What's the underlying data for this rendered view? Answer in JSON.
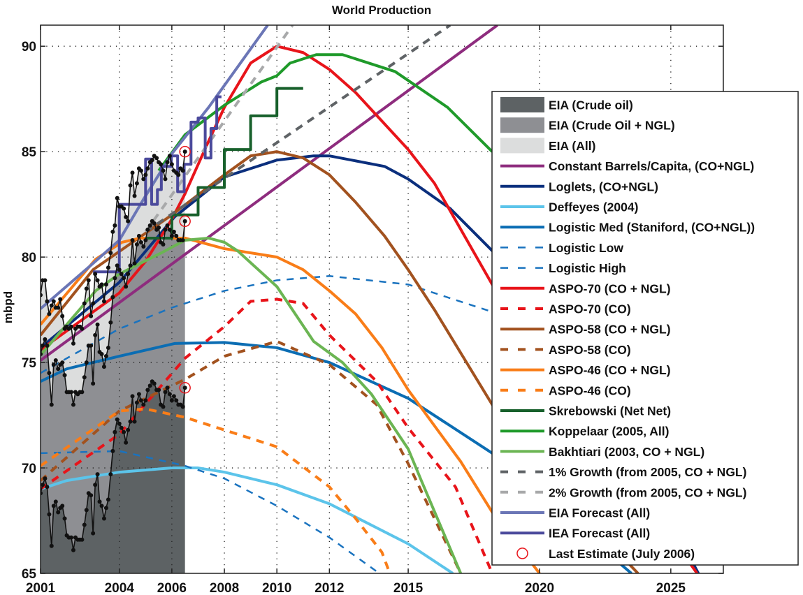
{
  "chart_data": {
    "type": "line",
    "title": "World Production",
    "xlabel": "",
    "ylabel": "mbpd",
    "xlim": [
      2001,
      2027
    ],
    "ylim": [
      65,
      91
    ],
    "xticks": [
      2001,
      2004,
      2006,
      2008,
      2010,
      2012,
      2015,
      2020,
      2025
    ],
    "yticks": [
      65,
      70,
      75,
      80,
      85,
      90
    ],
    "grid": true,
    "legend_position": "right",
    "eia_months": [
      2001.0,
      2001.08,
      2001.17,
      2001.25,
      2001.33,
      2001.42,
      2001.5,
      2001.58,
      2001.67,
      2001.75,
      2001.83,
      2001.92,
      2002.0,
      2002.08,
      2002.17,
      2002.25,
      2002.33,
      2002.42,
      2002.5,
      2002.58,
      2002.67,
      2002.75,
      2002.83,
      2002.92,
      2003.0,
      2003.08,
      2003.17,
      2003.25,
      2003.33,
      2003.42,
      2003.5,
      2003.58,
      2003.67,
      2003.75,
      2003.83,
      2003.92,
      2004.0,
      2004.08,
      2004.17,
      2004.25,
      2004.33,
      2004.42,
      2004.5,
      2004.58,
      2004.67,
      2004.75,
      2004.83,
      2004.92,
      2005.0,
      2005.08,
      2005.17,
      2005.25,
      2005.33,
      2005.42,
      2005.5,
      2005.58,
      2005.67,
      2005.75,
      2005.83,
      2005.92,
      2006.0,
      2006.08,
      2006.17,
      2006.25,
      2006.33,
      2006.42,
      2006.5
    ],
    "areas": [
      {
        "name": "EIA (Crude oil)",
        "color": "#5d6264",
        "y": [
          68.8,
          69.2,
          69.5,
          69.1,
          67.8,
          66.3,
          68.2,
          68.4,
          67.9,
          68.1,
          68.2,
          67.6,
          66.8,
          66.7,
          66.7,
          66.1,
          66.7,
          66.6,
          66.6,
          66.6,
          67.3,
          68.0,
          68.8,
          68.7,
          66.9,
          69.2,
          69.7,
          68.4,
          68.2,
          67.6,
          68.1,
          68.5,
          69.7,
          70.8,
          71.7,
          72.3,
          72.1,
          71.9,
          71.7,
          71.2,
          71.8,
          72.2,
          73.4,
          72.2,
          73.1,
          73.5,
          73.2,
          73.0,
          73.2,
          73.7,
          73.9,
          74.1,
          74.0,
          73.7,
          73.7,
          73.0,
          72.9,
          73.6,
          73.8,
          73.5,
          73.2,
          73.4,
          73.2,
          73.0,
          73.0,
          72.9,
          73.8
        ]
      },
      {
        "name": "EIA (Crude Oil + NGL)",
        "color": "#8e8f93",
        "y": [
          75.4,
          75.8,
          76.1,
          75.8,
          74.5,
          73.0,
          74.9,
          75.1,
          74.7,
          74.9,
          75.0,
          74.4,
          73.6,
          73.6,
          73.6,
          73.0,
          73.6,
          73.5,
          73.6,
          73.6,
          74.3,
          75.0,
          75.8,
          75.8,
          74.0,
          76.3,
          76.8,
          75.5,
          75.4,
          74.8,
          75.3,
          75.7,
          76.9,
          78.1,
          79.0,
          79.6,
          79.4,
          79.2,
          79.0,
          78.6,
          79.2,
          79.6,
          80.8,
          79.7,
          80.6,
          81.0,
          80.7,
          80.5,
          80.8,
          81.3,
          81.5,
          81.7,
          81.6,
          81.3,
          81.4,
          80.7,
          80.6,
          81.3,
          81.5,
          81.3,
          81.0,
          81.2,
          81.0,
          80.8,
          80.8,
          80.8,
          81.7
        ]
      },
      {
        "name": "EIA (All)",
        "color": "#dcdddd",
        "y": [
          78.2,
          78.9,
          78.9,
          77.9,
          77.3,
          77.7,
          77.9,
          77.6,
          77.6,
          78.0,
          77.2,
          76.6,
          76.7,
          76.6,
          76.7,
          75.9,
          76.6,
          76.7,
          76.7,
          76.6,
          77.8,
          78.5,
          78.9,
          77.2,
          77.8,
          79.2,
          78.9,
          78.6,
          78.7,
          77.9,
          78.7,
          79.5,
          80.2,
          81.2,
          81.5,
          82.8,
          82.4,
          82.4,
          82.3,
          81.9,
          81.7,
          83.4,
          84.0,
          82.9,
          83.5,
          84.2,
          84.1,
          83.7,
          83.9,
          84.2,
          84.5,
          84.6,
          84.8,
          84.7,
          84.5,
          84.4,
          84.1,
          83.7,
          84.5,
          84.8,
          84.4,
          84.1,
          84.0,
          83.9,
          84.2,
          84.1,
          85.0
        ]
      }
    ],
    "series": [
      {
        "name": "Constant Barrels/Capita, (CO+NGL)",
        "color": "#8e2c7e",
        "style": "solid",
        "x": [
          2001,
          2018.4
        ],
        "y": [
          75.1,
          91.0
        ]
      },
      {
        "name": "Loglets, (CO+NGL)",
        "color": "#0b2f7d",
        "style": "solid",
        "x": [
          2001,
          2004,
          2006.1,
          2008,
          2010,
          2011.4,
          2012,
          2014.1,
          2015,
          2016.6,
          2018.2,
          2020,
          2022,
          2024,
          2026.05
        ],
        "y": [
          75.7,
          78.8,
          81.9,
          83.8,
          84.6,
          84.8,
          84.8,
          84.3,
          83.7,
          82.3,
          80.3,
          77.6,
          74.0,
          69.8,
          65.0
        ]
      },
      {
        "name": "Deffeyes (2004)",
        "color": "#5cc4ea",
        "style": "solid",
        "x": [
          2001,
          2002,
          2004,
          2006,
          2007,
          2008,
          2010,
          2012,
          2015,
          2016.7
        ],
        "y": [
          69.0,
          69.4,
          69.8,
          70.0,
          70.0,
          69.8,
          69.2,
          68.3,
          66.4,
          65.0
        ]
      },
      {
        "name": "Logistic Med (Staniford, (CO+NGL))",
        "color": "#0b6db3",
        "style": "solid",
        "x": [
          2001,
          2002,
          2004,
          2006.1,
          2008,
          2010,
          2012,
          2015,
          2018.2,
          2020,
          2022,
          2023.5
        ],
        "y": [
          74.1,
          74.7,
          75.3,
          75.9,
          75.95,
          75.7,
          75.0,
          73.3,
          70.7,
          68.9,
          66.6,
          65.0
        ]
      },
      {
        "name": "Logistic Low",
        "color": "#1a73bf",
        "style": "thin-dashed",
        "x": [
          2001,
          2004,
          2006.5,
          2008,
          2010,
          2012,
          2013.9
        ],
        "y": [
          70.7,
          70.8,
          70.1,
          69.5,
          68.2,
          66.7,
          65.0
        ]
      },
      {
        "name": "Logistic High",
        "color": "#1a73bf",
        "style": "thin-dashed",
        "x": [
          2001,
          2004,
          2006,
          2008,
          2010,
          2012,
          2015,
          2018.2
        ],
        "y": [
          74.5,
          76.6,
          77.6,
          78.4,
          78.9,
          79.1,
          78.7,
          77.4
        ]
      },
      {
        "name": "ASPO-70 (CO + NGL)",
        "color": "#e8141a",
        "style": "solid",
        "x": [
          2001,
          2004,
          2005,
          2006,
          2006.5,
          2007.4,
          2008,
          2009,
          2010,
          2011,
          2012,
          2013,
          2015,
          2016,
          2018.2,
          2020,
          2022,
          2024,
          2026
        ],
        "y": [
          75.6,
          78.3,
          79.8,
          81.8,
          83.0,
          85.5,
          87.1,
          89.2,
          90.0,
          89.7,
          88.9,
          87.8,
          85.1,
          83.5,
          78.7,
          75.5,
          72.0,
          68.5,
          65.0
        ]
      },
      {
        "name": "ASPO-70 (CO)",
        "color": "#e8141a",
        "style": "dashed",
        "x": [
          2001,
          2004,
          2006.5,
          2008,
          2009,
          2010,
          2011,
          2012,
          2013.8,
          2015,
          2016.8,
          2018.2
        ],
        "y": [
          69.0,
          71.6,
          75.2,
          76.7,
          77.9,
          78.0,
          77.8,
          76.3,
          74.1,
          71.9,
          69.1,
          65.0
        ]
      },
      {
        "name": "ASPO-58 (CO + NGL)",
        "color": "#a2521f",
        "style": "solid",
        "x": [
          2001,
          2003,
          2006,
          2008,
          2009,
          2010,
          2011,
          2012,
          2013,
          2014.1,
          2015,
          2016,
          2018.2,
          2021,
          2023.75
        ],
        "y": [
          76.3,
          79.4,
          82.0,
          83.9,
          84.8,
          85.0,
          84.7,
          83.9,
          82.6,
          81.0,
          79.4,
          77.5,
          73.0,
          68.6,
          65.0
        ]
      },
      {
        "name": "ASPO-58 (CO)",
        "color": "#a2521f",
        "style": "dashed",
        "x": [
          2001,
          2004,
          2006.5,
          2008,
          2010,
          2012,
          2013.8,
          2015,
          2017.0
        ],
        "y": [
          69.4,
          72.7,
          74.2,
          75.3,
          76.0,
          74.9,
          73.0,
          70.2,
          65.0
        ]
      },
      {
        "name": "ASPO-46 (CO + NGL)",
        "color": "#f97d18",
        "style": "solid",
        "x": [
          2001,
          2003.1,
          2004.1,
          2004.8,
          2006.5,
          2008,
          2010,
          2011,
          2012,
          2013,
          2014,
          2015,
          2017,
          2018.2,
          2020
        ],
        "y": [
          76.8,
          79.9,
          80.7,
          80.9,
          80.9,
          80.4,
          80.0,
          79.4,
          78.4,
          77.3,
          75.7,
          73.7,
          70.3,
          67.9,
          65.0
        ]
      },
      {
        "name": "ASPO-46 (CO)",
        "color": "#f97d18",
        "style": "dashed",
        "x": [
          2001,
          2004,
          2005,
          2006.5,
          2008,
          2010,
          2012,
          2013,
          2014,
          2014.3
        ],
        "y": [
          70.1,
          72.7,
          72.8,
          72.4,
          71.8,
          71.0,
          69.1,
          67.6,
          66.0,
          65.0
        ]
      },
      {
        "name": "Skrebowski (Net Net)",
        "color": "#17602b",
        "style": "step",
        "x": [
          2005,
          2006,
          2007,
          2008,
          2009,
          2010,
          2011
        ],
        "y": [
          80.9,
          82.0,
          83.3,
          85.1,
          86.7,
          88.0,
          88.0
        ]
      },
      {
        "name": "Koppelaar (2005, All)",
        "color": "#1f9a2a",
        "style": "solid",
        "x": [
          2005.5,
          2006.5,
          2008,
          2009.4,
          2010,
          2010.5,
          2011.5,
          2012.5,
          2014.5,
          2016.5,
          2018.2
        ],
        "y": [
          84.1,
          85.8,
          87.2,
          88.3,
          88.6,
          89.2,
          89.6,
          89.6,
          88.8,
          87.1,
          85.0
        ]
      },
      {
        "name": "Bakhtiari (2003, CO + NGL)",
        "color": "#6bb553",
        "style": "solid",
        "x": [
          2001,
          2003.1,
          2004,
          2005.6,
          2006.5,
          2007.4,
          2008,
          2008.5,
          2010,
          2011.4,
          2012.5,
          2013.6,
          2015,
          2015.5,
          2017
        ],
        "y": [
          75.35,
          78.4,
          79.2,
          80.2,
          80.8,
          80.9,
          80.7,
          80.3,
          78.6,
          76.0,
          75.0,
          73.5,
          70.9,
          69.4,
          65.0
        ]
      },
      {
        "name": "1% Growth (from 2005, CO + NGL)",
        "color": "#5f6366",
        "style": "dashed",
        "x": [
          2005,
          2016.6
        ],
        "y": [
          81.2,
          91.0
        ]
      },
      {
        "name": "2% Growth (from 2005, CO + NGL)",
        "color": "#a8a9aa",
        "style": "dashed",
        "x": [
          2005,
          2010.6
        ],
        "y": [
          81.2,
          91.0
        ]
      },
      {
        "name": "EIA Forecast (All)",
        "color": "#6b76b6",
        "style": "solid",
        "x": [
          2001,
          2003,
          2004,
          2004.9,
          2006,
          2007.4,
          2009.65
        ],
        "y": [
          77.55,
          79.7,
          80.8,
          82.7,
          84.9,
          87.1,
          91.0
        ]
      },
      {
        "name": "IEA Forecast (All)",
        "color": "#4b4a9c",
        "style": "path",
        "x": [
          2003.0,
          2004.0,
          2004.0,
          2005.0,
          2005.0,
          2005.23,
          2005.23,
          2005.45,
          2005.45,
          2005.6,
          2005.6,
          2005.98,
          2005.98,
          2006.22,
          2006.22,
          2006.47,
          2006.47,
          2006.73,
          2006.73,
          2007.0,
          2007.0,
          2007.27,
          2007.27,
          2007.49,
          2007.49,
          2007.71,
          2007.71,
          2007.89
        ],
        "y": [
          79.3,
          79.3,
          82.5,
          82.5,
          84.65,
          84.65,
          82.5,
          82.5,
          83.2,
          83.2,
          84.3,
          84.3,
          84.8,
          84.8,
          83.1,
          83.1,
          84.4,
          84.4,
          86.4,
          86.4,
          86.6,
          86.6,
          84.7,
          84.7,
          86.1,
          86.1,
          87.6,
          87.6
        ]
      }
    ],
    "last_estimate": {
      "name": "Last Estimate (July 2006)",
      "color": "#e8141a",
      "x": 2006.5,
      "y": [
        85.0,
        81.7,
        73.8
      ]
    }
  }
}
